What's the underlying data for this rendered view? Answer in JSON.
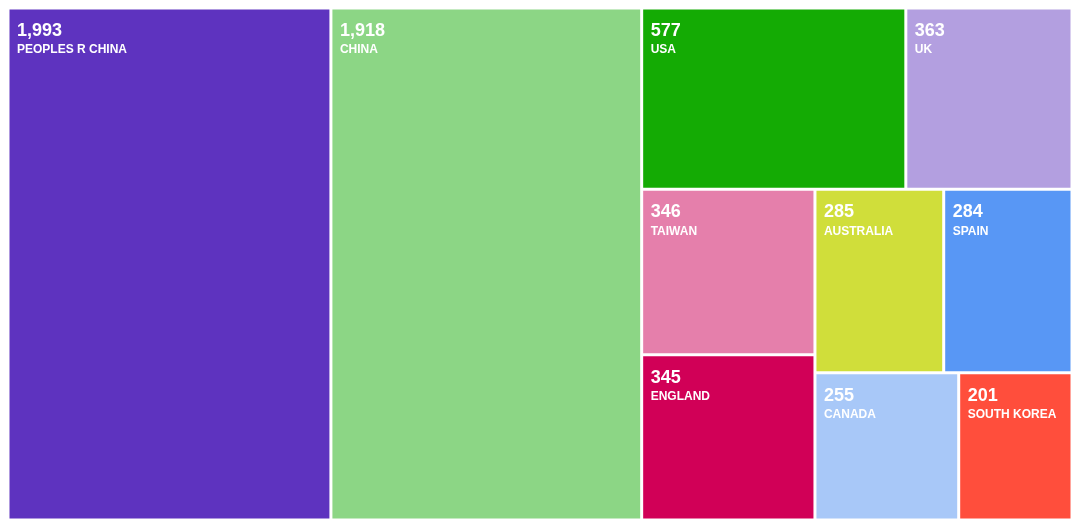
{
  "chart_data": {
    "type": "other",
    "categories": [
      "PEOPLES R CHINA",
      "CHINA",
      "USA",
      "UK",
      "TAIWAN",
      "ENGLAND",
      "AUSTRALIA",
      "SPAIN",
      "CANADA",
      "SOUTH KOREA"
    ],
    "values": [
      1993,
      1918,
      577,
      363,
      346,
      345,
      285,
      284,
      255,
      201
    ],
    "colors": [
      "#5e33bf",
      "#8cd685",
      "#14ab04",
      "#b39fe0",
      "#e57fab",
      "#d10057",
      "#d0de3a",
      "#5897f5",
      "#a8c8f8",
      "#ff4e3c"
    ],
    "value_labels": [
      "1,993",
      "1,918",
      "577",
      "363",
      "346",
      "345",
      "285",
      "284",
      "255",
      "201"
    ]
  }
}
